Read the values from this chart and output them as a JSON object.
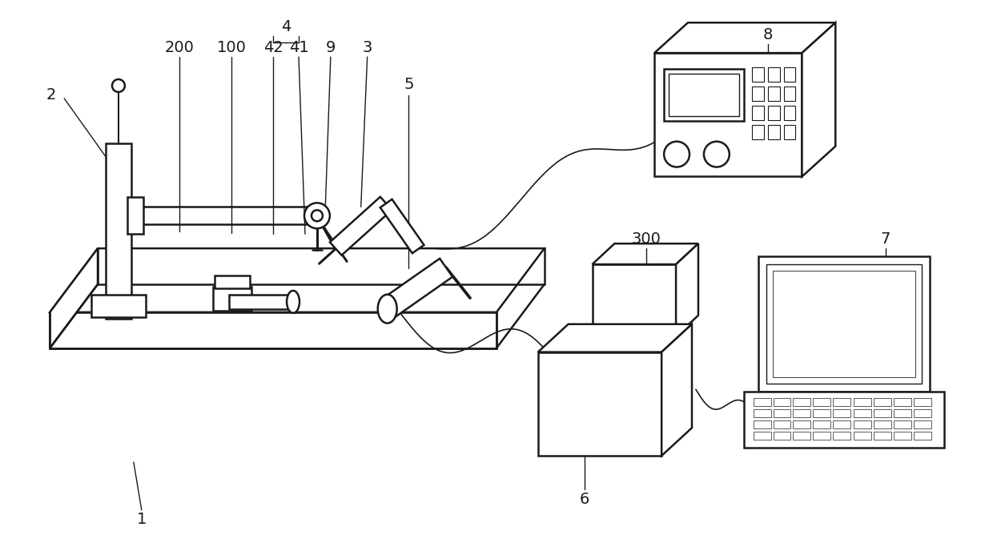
{
  "bg_color": "#ffffff",
  "line_color": "#1a1a1a",
  "lw": 1.8,
  "tlw": 1.0,
  "fig_width": 12.4,
  "fig_height": 6.83
}
